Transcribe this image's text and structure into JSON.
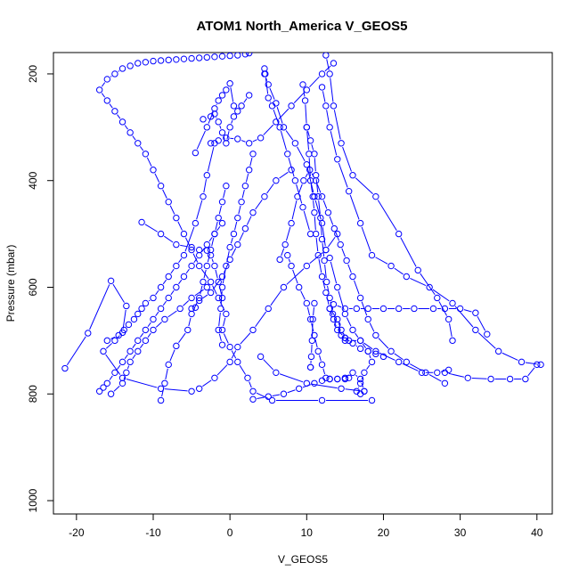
{
  "chart_data": {
    "type": "line",
    "title": "ATOM1 North_America V_GEOS5",
    "xlabel": "V_GEOS5",
    "ylabel": "Pressure (mbar)",
    "xlim": [
      -23,
      42
    ],
    "ylim": [
      1025,
      160
    ],
    "y_reversed": true,
    "x_ticks": [
      -20,
      -10,
      0,
      10,
      20,
      30,
      40
    ],
    "y_ticks": [
      200,
      400,
      600,
      800,
      1000
    ],
    "series_color": "#0000ff",
    "marker": "open-circle",
    "series": [
      {
        "x": [
          18.5,
          12,
          5.5,
          3,
          2.3,
          1,
          0,
          -1,
          -0.5,
          -1.5,
          -2.5,
          -4,
          -5,
          -6,
          -7,
          -8,
          -9,
          -10,
          -11,
          -12,
          -13,
          -14,
          -15,
          -16,
          -17,
          -16,
          -15,
          -14,
          -13,
          -12,
          -11,
          -10,
          -9,
          -8,
          -7,
          -6,
          -5,
          -4,
          -3,
          -2,
          -1,
          0,
          1,
          2,
          2.5
        ],
        "y": [
          812,
          812,
          812,
          795,
          770,
          740,
          712,
          680,
          650,
          620,
          590,
          560,
          530,
          500,
          470,
          440,
          410,
          380,
          350,
          330,
          310,
          290,
          270,
          250,
          230,
          210,
          200,
          190,
          185,
          180,
          178,
          176,
          175,
          174,
          173,
          172,
          171,
          170,
          169,
          168,
          167,
          166,
          165,
          163,
          161
        ]
      },
      {
        "x": [
          -21.5,
          -18.5,
          -15.5,
          -13.5,
          -14,
          -15,
          -16.5,
          -14,
          -9,
          -5,
          -4,
          -2,
          0,
          1,
          3,
          5,
          7,
          10,
          12.5,
          14
        ],
        "y": [
          752,
          686,
          588,
          635,
          685,
          700,
          720,
          770,
          790,
          795,
          790,
          770,
          740,
          712,
          680,
          640,
          600,
          560,
          530,
          500
        ]
      },
      {
        "x": [
          -9,
          -8.5,
          -8,
          -7,
          -5.5,
          -5,
          -4,
          -3.5,
          -3,
          -2.5,
          -2,
          -1.5,
          -1,
          -0.5
        ],
        "y": [
          812,
          780,
          745,
          710,
          680,
          650,
          620,
          590,
          560,
          530,
          500,
          470,
          440,
          410
        ]
      },
      {
        "x": [
          -17,
          -16.5,
          -16,
          -15,
          -14,
          -13,
          -12,
          -11,
          -10,
          -9,
          -8,
          -7,
          -6,
          -5,
          -4,
          -3,
          -2,
          -1
        ],
        "y": [
          795,
          788,
          780,
          760,
          740,
          720,
          700,
          680,
          660,
          640,
          620,
          600,
          580,
          560,
          540,
          520,
          500,
          480
        ]
      },
      {
        "x": [
          -11.5,
          -9,
          -7,
          -5,
          -4,
          -3,
          -2.5,
          -2,
          -1.5,
          -1
        ],
        "y": [
          478,
          500,
          520,
          525,
          530,
          531,
          540,
          560,
          590,
          620
        ]
      },
      {
        "x": [
          -16,
          -14.5,
          -13.8,
          -13.2,
          -12.5,
          -12,
          -11.5,
          -11,
          -10,
          -9,
          -8,
          -7,
          -6,
          -4.5,
          -3.5,
          -3,
          -2
        ],
        "y": [
          700,
          690,
          680,
          670,
          660,
          650,
          640,
          630,
          620,
          600,
          580,
          560,
          540,
          480,
          430,
          390,
          330
        ]
      },
      {
        "x": [
          -15.5,
          -14,
          -13.5,
          -13,
          -12,
          -11,
          -10,
          -8.5,
          -6.5,
          -5,
          -3
        ],
        "y": [
          800,
          780,
          760,
          740,
          720,
          700,
          680,
          660,
          640,
          620,
          600
        ]
      },
      {
        "x": [
          -5,
          -4.5,
          -4,
          -2.5,
          -1,
          0,
          1,
          2,
          3,
          4.5,
          6,
          8
        ],
        "y": [
          640,
          638,
          625,
          610,
          580,
          548,
          520,
          490,
          460,
          430,
          400,
          380
        ]
      },
      {
        "x": [
          -1,
          -1.5,
          -1.2,
          -1,
          -0.5,
          0,
          0.5,
          1,
          1.5,
          2,
          2.5,
          3
        ],
        "y": [
          708,
          680,
          640,
          600,
          560,
          525,
          500,
          470,
          440,
          410,
          380,
          350
        ]
      },
      {
        "x": [
          -3.5,
          -2.5,
          -2,
          -1.5,
          -1,
          -0.5,
          0,
          0.5,
          1,
          1.5,
          2.5
        ],
        "y": [
          285,
          280,
          275,
          290,
          310,
          330,
          300,
          280,
          270,
          260,
          240
        ]
      },
      {
        "x": [
          -2.5,
          -1.5,
          -0.5,
          1,
          2.5,
          4,
          6,
          8,
          10,
          12,
          13.5
        ],
        "y": [
          330,
          325,
          320,
          322,
          330,
          320,
          290,
          260,
          230,
          200,
          180
        ]
      },
      {
        "x": [
          -4.5,
          -3,
          -2,
          -1.5,
          -1,
          -0.5,
          0,
          0.5
        ],
        "y": [
          348,
          300,
          265,
          250,
          240,
          230,
          218,
          260
        ]
      },
      {
        "x": [
          4.5,
          4.6,
          5,
          5.5,
          6.5,
          7.5,
          8.5,
          9.5,
          10.5
        ],
        "y": [
          190,
          200,
          245,
          260,
          300,
          350,
          400,
          450,
          500
        ]
      },
      {
        "x": [
          4.5,
          5,
          6,
          7,
          8.5,
          10,
          11,
          12,
          12.5
        ],
        "y": [
          200,
          220,
          255,
          300,
          330,
          370,
          430,
          480,
          530
        ]
      },
      {
        "x": [
          9.5,
          9.8,
          10,
          10.3,
          10.5,
          10.8,
          11,
          11.2,
          11.5,
          12,
          12.5,
          13,
          13.5,
          14,
          15,
          16,
          17,
          18,
          19,
          20
        ],
        "y": [
          220,
          250,
          300,
          350,
          400,
          430,
          460,
          500,
          540,
          580,
          610,
          640,
          660,
          680,
          695,
          705,
          715,
          720,
          725,
          730
        ]
      },
      {
        "x": [
          10,
          10.5,
          11,
          11.2,
          11.5,
          11.8,
          12,
          12.3,
          12.6,
          13,
          13.4,
          14,
          14.5,
          15
        ],
        "y": [
          300,
          325,
          350,
          390,
          430,
          470,
          510,
          550,
          590,
          620,
          650,
          670,
          690,
          700
        ]
      },
      {
        "x": [
          12,
          12.5,
          13,
          14,
          15.5,
          17,
          18.5,
          21,
          23,
          26,
          29,
          32,
          35,
          38,
          40.5
        ],
        "y": [
          225,
          260,
          300,
          360,
          420,
          480,
          540,
          560,
          580,
          600,
          630,
          680,
          720,
          740,
          745
        ]
      },
      {
        "x": [
          12.5,
          13,
          13.5,
          14.5,
          16,
          19,
          22,
          24.5,
          27,
          28.5,
          29
        ],
        "y": [
          165,
          200,
          260,
          330,
          390,
          430,
          500,
          568,
          620,
          660,
          700
        ]
      },
      {
        "x": [
          13.5,
          15,
          16.5,
          18,
          20,
          22,
          24,
          26.5,
          28,
          30,
          32,
          33.5
        ],
        "y": [
          632,
          640,
          640,
          640,
          640,
          640,
          640,
          640,
          640,
          640,
          648,
          688
        ]
      },
      {
        "x": [
          13,
          14,
          15,
          16,
          17,
          18,
          18.5,
          17.5,
          17,
          16.5
        ],
        "y": [
          545,
          600,
          650,
          680,
          700,
          720,
          740,
          760,
          780,
          795
        ]
      },
      {
        "x": [
          6.5,
          7.2,
          8,
          8.8,
          9.6,
          10.4,
          11.2,
          12,
          12.8,
          13.6,
          14.4,
          15.2,
          16,
          17,
          18,
          19,
          21,
          23,
          25.5,
          28
        ],
        "y": [
          548,
          520,
          480,
          430,
          400,
          380,
          400,
          430,
          460,
          490,
          520,
          550,
          580,
          620,
          660,
          690,
          720,
          740,
          760,
          780
        ]
      },
      {
        "x": [
          7.5,
          8,
          9,
          10,
          10.5,
          11,
          11.5,
          12,
          12.5,
          13,
          14,
          15,
          16,
          17,
          17.5,
          17
        ],
        "y": [
          540,
          560,
          600,
          630,
          660,
          690,
          720,
          745,
          770,
          772,
          772,
          770,
          760,
          772,
          795,
          800
        ]
      },
      {
        "x": [
          11,
          10.8,
          10.7,
          10.6,
          10.5,
          10.5
        ],
        "y": [
          630,
          660,
          700,
          730,
          750,
          750
        ]
      },
      {
        "x": [
          3,
          5,
          7,
          9,
          11,
          12,
          13,
          14,
          15,
          15.5
        ],
        "y": [
          810,
          805,
          800,
          790,
          780,
          775,
          772,
          772,
          772,
          770
        ]
      },
      {
        "x": [
          13,
          14,
          14.5,
          15,
          15.5,
          17,
          19,
          22,
          25,
          27,
          28.5
        ],
        "y": [
          640,
          660,
          680,
          695,
          700,
          700,
          720,
          740,
          760,
          760,
          755
        ]
      },
      {
        "x": [
          28,
          31,
          34,
          36.5,
          38.5,
          40
        ],
        "y": [
          760,
          770,
          772,
          772,
          772,
          745
        ]
      },
      {
        "x": [
          17.5,
          14.5,
          10,
          6,
          4
        ],
        "y": [
          795,
          790,
          780,
          760,
          730
        ]
      }
    ]
  }
}
